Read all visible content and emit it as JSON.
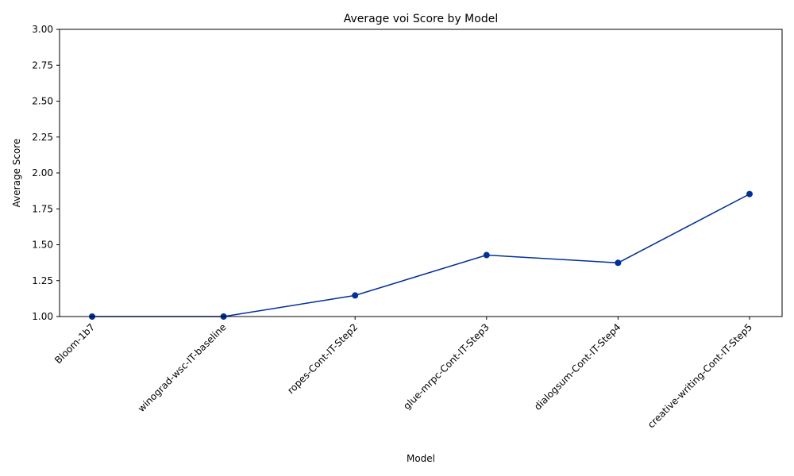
{
  "chart_data": {
    "type": "line",
    "title": "Average voi Score by Model",
    "xlabel": "Model",
    "ylabel": "Average Score",
    "categories": [
      "Bloom-1b7",
      "winograd-wsc-IT-baseline",
      "ropes-Cont-IT-Step2",
      "glue-mrpc-Cont-IT-Step3",
      "dialogsum-Cont-IT-Step4",
      "creative-writing-Cont-IT-Step5"
    ],
    "values": [
      1.0,
      1.0,
      1.147,
      1.428,
      1.374,
      1.853
    ],
    "ylim": [
      1.0,
      3.0
    ],
    "yticks": [
      "1.00",
      "1.25",
      "1.50",
      "1.75",
      "2.00",
      "2.25",
      "2.50",
      "2.75",
      "3.00"
    ],
    "grid": false,
    "line_color": "#00309c",
    "marker": "circle"
  }
}
